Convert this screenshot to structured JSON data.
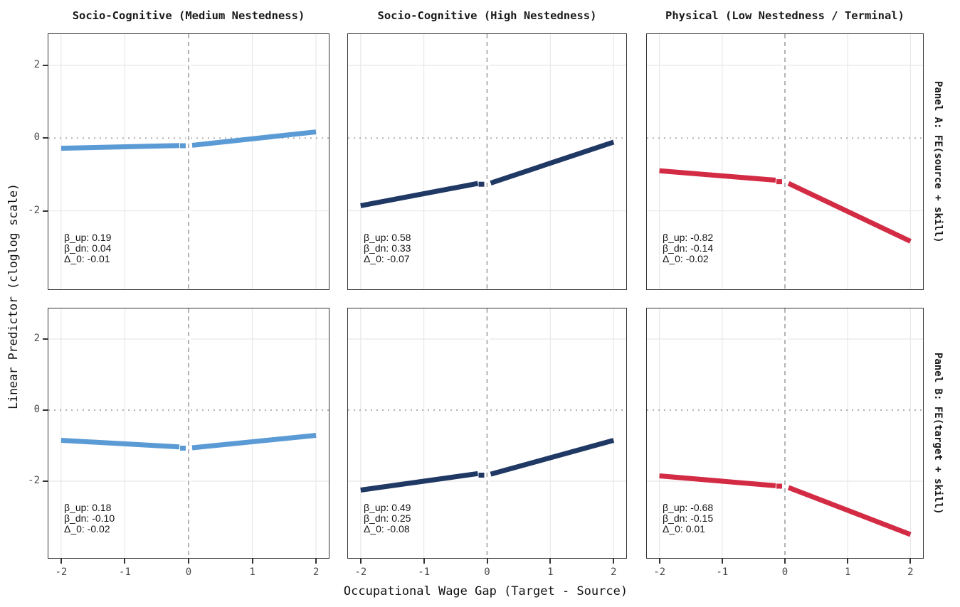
{
  "chart_data": {
    "type": "line",
    "title": "",
    "x_label": "Occupational Wage Gap (Target - Source)",
    "y_label": "Linear Predictor (cloglog scale)",
    "x_ticks": [
      "-2",
      "-1",
      "0",
      "1",
      "2"
    ],
    "y_ticks": [
      "2",
      "0",
      "-2"
    ],
    "x_domain": [
      -2.2,
      2.2
    ],
    "y_domain": [
      -4.16,
      2.86
    ],
    "legend": "none",
    "grid": {
      "h_major_values": [
        2,
        -2
      ],
      "h_dotted_zero_line": true,
      "v_major_values": [
        -2,
        -1,
        0,
        1,
        2
      ],
      "dashed_vline_x": 0
    },
    "style": {
      "medium_blue": "#5B9BD5",
      "high_navy": "#1F3864",
      "physical_red": "#D32B44",
      "grid_color": "#E8E8E8",
      "zero_dotted_color": "#A8A8A8",
      "vline_dashed_color": "#B4B4B4",
      "panel_border": "#333333",
      "tick_text": "#4A4A4A"
    },
    "col_titles": [
      "Socio-Cognitive (Medium Nestedness)",
      "Socio-Cognitive (High Nestedness)",
      "Physical (Low Nestedness / Terminal)"
    ],
    "row_labels": [
      "Panel A: FE(source + skill)",
      "Panel B: FE(target + skill)"
    ],
    "panels": [
      {
        "row": 0,
        "col": 0,
        "series": "Socio-Cognitive (Medium Nestedness)",
        "color": "#5B9BD5",
        "pre_segment": {
          "x": [
            -2,
            0
          ],
          "y": [
            -0.28,
            -0.2
          ]
        },
        "post_segment": {
          "x": [
            0,
            2
          ],
          "y": [
            -0.21,
            0.17
          ]
        },
        "stats": {
          "beta_up": 0.19,
          "beta_dn": 0.04,
          "delta_0": -0.01
        },
        "annotation_lines": [
          "β_up: 0.19",
          "β_dn: 0.04",
          "Δ_0: -0.01"
        ]
      },
      {
        "row": 0,
        "col": 1,
        "series": "Socio-Cognitive (High Nestedness)",
        "color": "#1F3864",
        "pre_segment": {
          "x": [
            -2,
            0
          ],
          "y": [
            -1.86,
            -1.2
          ]
        },
        "post_segment": {
          "x": [
            0,
            2
          ],
          "y": [
            -1.27,
            -0.11
          ]
        },
        "stats": {
          "beta_up": 0.58,
          "beta_dn": 0.33,
          "delta_0": -0.07
        },
        "annotation_lines": [
          "β_up: 0.58",
          "β_dn: 0.33",
          "Δ_0: -0.07"
        ]
      },
      {
        "row": 0,
        "col": 2,
        "series": "Physical (Low Nestedness / Terminal)",
        "color": "#D32B44",
        "pre_segment": {
          "x": [
            -2,
            0
          ],
          "y": [
            -0.9,
            -1.18
          ]
        },
        "post_segment": {
          "x": [
            0,
            2
          ],
          "y": [
            -1.2,
            -2.84
          ]
        },
        "stats": {
          "beta_up": -0.82,
          "beta_dn": -0.14,
          "delta_0": -0.02
        },
        "annotation_lines": [
          "β_up: -0.82",
          "β_dn: -0.14",
          "Δ_0: -0.02"
        ]
      },
      {
        "row": 1,
        "col": 0,
        "series": "Socio-Cognitive (Medium Nestedness)",
        "color": "#5B9BD5",
        "pre_segment": {
          "x": [
            -2,
            0
          ],
          "y": [
            -0.85,
            -1.05
          ]
        },
        "post_segment": {
          "x": [
            0,
            2
          ],
          "y": [
            -1.07,
            -0.71
          ]
        },
        "stats": {
          "beta_up": 0.18,
          "beta_dn": -0.1,
          "delta_0": -0.02
        },
        "annotation_lines": [
          "β_up: 0.18",
          "β_dn: -0.10",
          "Δ_0: -0.02"
        ]
      },
      {
        "row": 1,
        "col": 1,
        "series": "Socio-Cognitive (High Nestedness)",
        "color": "#1F3864",
        "pre_segment": {
          "x": [
            -2,
            0
          ],
          "y": [
            -2.25,
            -1.75
          ]
        },
        "post_segment": {
          "x": [
            0,
            2
          ],
          "y": [
            -1.83,
            -0.85
          ]
        },
        "stats": {
          "beta_up": 0.49,
          "beta_dn": 0.25,
          "delta_0": -0.08
        },
        "annotation_lines": [
          "β_up: 0.49",
          "β_dn: 0.25",
          "Δ_0: -0.08"
        ]
      },
      {
        "row": 1,
        "col": 2,
        "series": "Physical (Low Nestedness / Terminal)",
        "color": "#D32B44",
        "pre_segment": {
          "x": [
            -2,
            0
          ],
          "y": [
            -1.85,
            -2.15
          ]
        },
        "post_segment": {
          "x": [
            0,
            2
          ],
          "y": [
            -2.14,
            -3.5
          ]
        },
        "stats": {
          "beta_up": -0.68,
          "beta_dn": -0.15,
          "delta_0": 0.01
        },
        "annotation_lines": [
          "β_up: -0.68",
          "β_dn: -0.15",
          "Δ_0: 0.01"
        ]
      }
    ]
  }
}
